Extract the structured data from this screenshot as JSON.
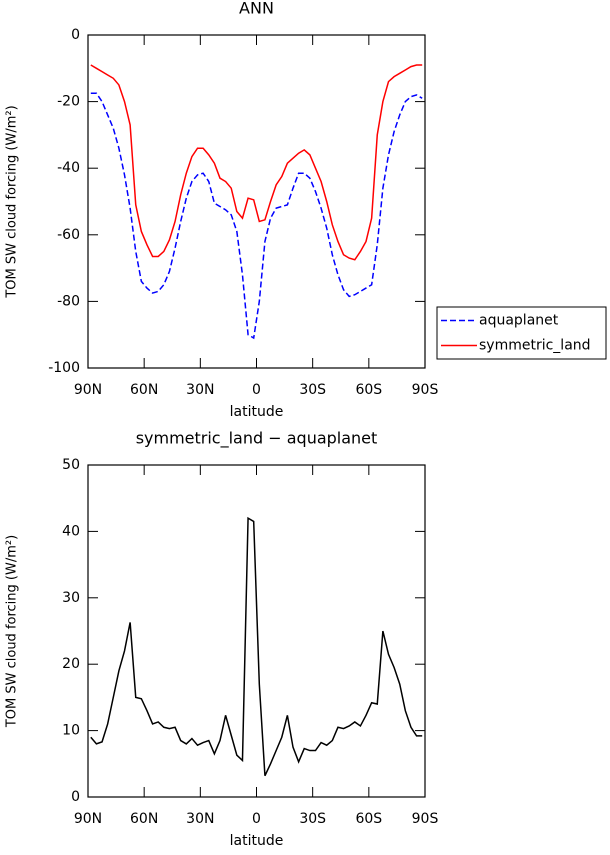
{
  "chart_data": [
    {
      "type": "line",
      "title": "ANN",
      "ylabel": "TOM SW cloud forcing (W/m²)",
      "xlabel": "latitude",
      "x": [
        88.5,
        85.5,
        82.5,
        79.5,
        76.5,
        73.5,
        70.5,
        67.5,
        64.5,
        61.5,
        58.5,
        55.5,
        52.5,
        49.5,
        46.5,
        43.5,
        40.5,
        37.5,
        34.5,
        31.5,
        28.5,
        25.5,
        22.5,
        19.5,
        16.5,
        13.5,
        10.5,
        7.5,
        4.5,
        1.5,
        -1.5,
        -4.5,
        -7.5,
        -10.5,
        -13.5,
        -16.5,
        -19.5,
        -22.5,
        -25.5,
        -28.5,
        -31.5,
        -34.5,
        -37.5,
        -40.5,
        -43.5,
        -46.5,
        -49.5,
        -52.5,
        -55.5,
        -58.5,
        -61.5,
        -64.5,
        -67.5,
        -70.5,
        -73.5,
        -76.5,
        -79.5,
        -82.5,
        -85.5,
        -88.5
      ],
      "series": [
        {
          "name": "aquaplanet",
          "color": "#0000ff",
          "dash": true,
          "values": [
            -17.5,
            -17.5,
            -20,
            -24,
            -28,
            -34,
            -42,
            -52,
            -65,
            -74,
            -76,
            -77.5,
            -77,
            -75,
            -71,
            -64,
            -56,
            -49,
            -44,
            -42,
            -41.5,
            -44,
            -50.5,
            -51.5,
            -52.5,
            -54,
            -59,
            -72,
            -90,
            -91,
            -80,
            -62,
            -55,
            -52,
            -51.5,
            -51,
            -46,
            -41.5,
            -41.5,
            -43,
            -47,
            -52,
            -58,
            -66,
            -72,
            -76.5,
            -78.5,
            -78,
            -77,
            -76,
            -75,
            -63,
            -46,
            -36,
            -29,
            -24,
            -20,
            -18.5,
            -18,
            -19
          ]
        },
        {
          "name": "symmetric_land",
          "color": "#ff0000",
          "dash": false,
          "values": [
            -9,
            -10,
            -11,
            -12,
            -13,
            -15,
            -20,
            -27,
            -51,
            -59,
            -63,
            -66.5,
            -66.5,
            -65,
            -61.5,
            -56,
            -48,
            -41.5,
            -36.5,
            -34,
            -34,
            -36,
            -38.5,
            -43,
            -44,
            -46,
            -53,
            -55,
            -49,
            -49.5,
            -56,
            -55.5,
            -50,
            -45,
            -42.5,
            -38.5,
            -37,
            -35.5,
            -34.5,
            -36,
            -40,
            -44,
            -50,
            -57,
            -62,
            -66,
            -67,
            -67.5,
            -65,
            -62,
            -55,
            -30,
            -20,
            -14,
            -12.5,
            -11.5,
            -10.5,
            -9.5,
            -9,
            -9
          ]
        }
      ],
      "xlim": [
        90,
        -90
      ],
      "xticks": [
        {
          "value": 90,
          "label": "90N"
        },
        {
          "value": 60,
          "label": "60N"
        },
        {
          "value": 30,
          "label": "30N"
        },
        0,
        {
          "value": -30,
          "label": "30S"
        },
        {
          "value": -60,
          "label": "60S"
        },
        {
          "value": -90,
          "label": "90S"
        }
      ],
      "ylim": [
        -100,
        0
      ],
      "yticks": [
        -100,
        -80,
        -60,
        -40,
        -20,
        0
      ],
      "legend": "right"
    },
    {
      "type": "line",
      "title": "symmetric_land − aquaplanet",
      "ylabel": "TOM SW cloud forcing (W/m²)",
      "xlabel": "latitude",
      "x": [
        88.5,
        85.5,
        82.5,
        79.5,
        76.5,
        73.5,
        70.5,
        67.5,
        64.5,
        61.5,
        58.5,
        55.5,
        52.5,
        49.5,
        46.5,
        43.5,
        40.5,
        37.5,
        34.5,
        31.5,
        28.5,
        25.5,
        22.5,
        19.5,
        16.5,
        13.5,
        10.5,
        7.5,
        4.5,
        1.5,
        -1.5,
        -4.5,
        -7.5,
        -10.5,
        -13.5,
        -16.5,
        -19.5,
        -22.5,
        -25.5,
        -28.5,
        -31.5,
        -34.5,
        -37.5,
        -40.5,
        -43.5,
        -46.5,
        -49.5,
        -52.5,
        -55.5,
        -58.5,
        -61.5,
        -64.5,
        -67.5,
        -70.5,
        -73.5,
        -76.5,
        -79.5,
        -82.5,
        -85.5,
        -88.5
      ],
      "color": "#000000",
      "values": [
        9,
        8,
        8.3,
        11,
        15,
        19,
        22,
        26.3,
        15,
        14.8,
        13,
        11,
        11.3,
        10.5,
        10.3,
        10.5,
        8.5,
        8,
        8.8,
        7.8,
        8.2,
        8.5,
        6.5,
        8.5,
        12.3,
        9.3,
        6.3,
        5.5,
        42,
        41.5,
        17,
        3.2,
        5,
        7,
        9,
        12.3,
        7.5,
        5.3,
        7.3,
        7,
        7,
        8.2,
        7.8,
        8.5,
        10.5,
        10.3,
        10.7,
        11.3,
        10.7,
        12.3,
        14.2,
        14,
        25,
        21.5,
        19.5,
        17,
        13,
        10.5,
        9.2,
        9.2
      ],
      "xlim": [
        90,
        -90
      ],
      "xticks": [
        {
          "value": 90,
          "label": "90N"
        },
        {
          "value": 60,
          "label": "60N"
        },
        {
          "value": 30,
          "label": "30N"
        },
        0,
        {
          "value": -30,
          "label": "30S"
        },
        {
          "value": -60,
          "label": "60S"
        },
        {
          "value": -90,
          "label": "90S"
        }
      ],
      "ylim": [
        0,
        50
      ],
      "yticks": [
        0,
        10,
        20,
        30,
        40,
        50
      ]
    }
  ]
}
